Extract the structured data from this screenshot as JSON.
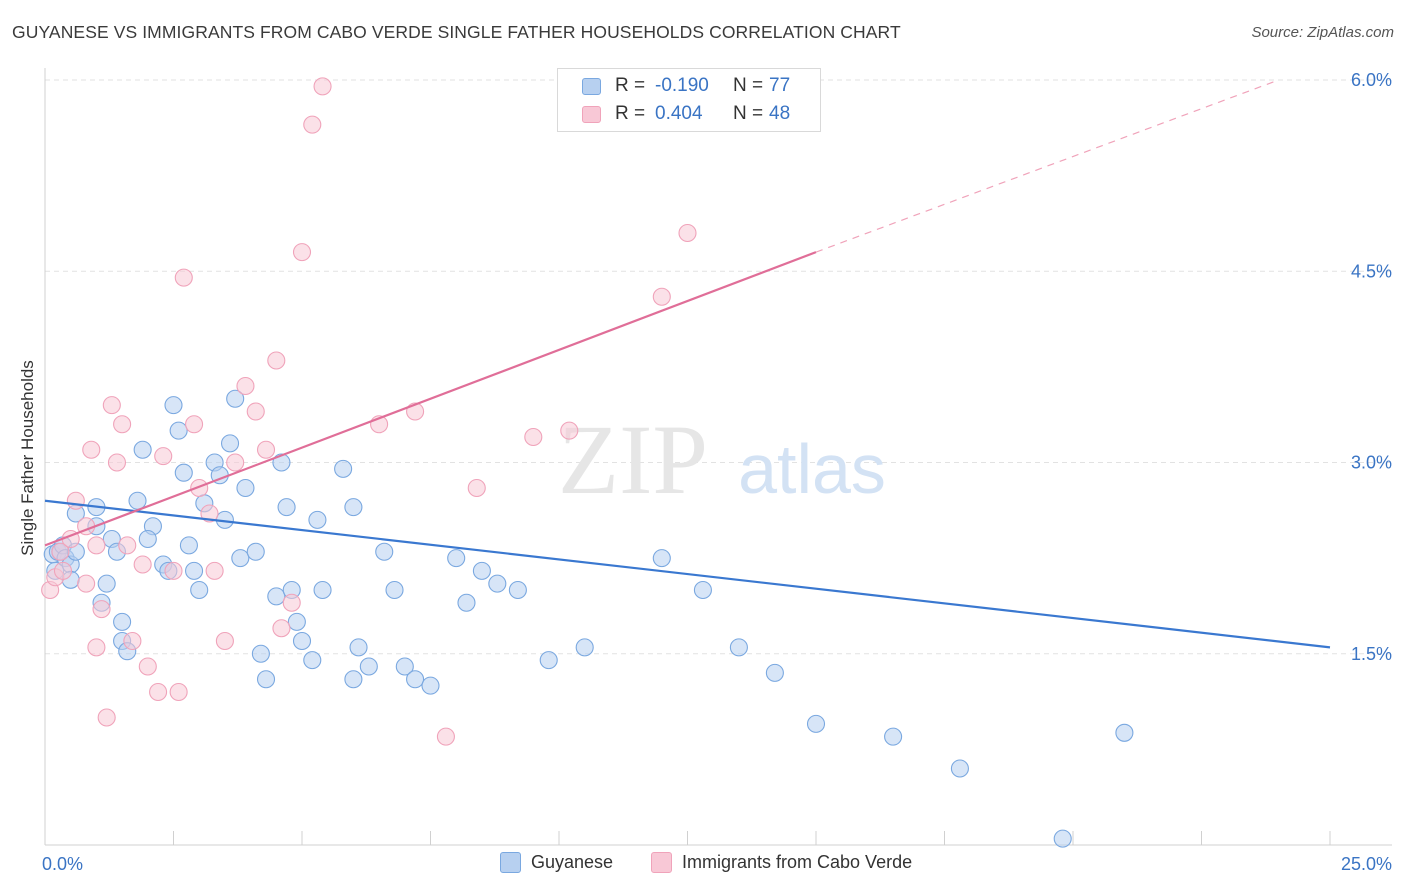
{
  "title": "GUYANESE VS IMMIGRANTS FROM CABO VERDE SINGLE FATHER HOUSEHOLDS CORRELATION CHART",
  "source": "Source: ZipAtlas.com",
  "watermark": {
    "zip": "ZIP",
    "atlas": "atlas"
  },
  "legend": {
    "rows": [
      {
        "r_label": "R =",
        "r_value": "-0.190",
        "n_label": "N =",
        "n_value": "77"
      },
      {
        "r_label": "R =",
        "r_value": "0.404",
        "n_label": "N =",
        "n_value": "48"
      }
    ]
  },
  "bottom_legend": [
    "Guyanese",
    "Immigrants from Cabo Verde"
  ],
  "chart_data": {
    "type": "scatter",
    "title": "GUYANESE VS IMMIGRANTS FROM CABO VERDE SINGLE FATHER HOUSEHOLDS CORRELATION CHART",
    "xlabel": "",
    "ylabel": "Single Father Households",
    "xlim": [
      0,
      25
    ],
    "ylim": [
      0,
      6
    ],
    "x_tick_labels": [
      "0.0%",
      "25.0%"
    ],
    "y_ticks": [
      1.5,
      3.0,
      4.5,
      6.0
    ],
    "y_tick_labels": [
      "1.5%",
      "3.0%",
      "4.5%",
      "6.0%"
    ],
    "grid": true,
    "legend_position": "top-center",
    "series": [
      {
        "name": "Guyanese",
        "color": "#7aa8e0",
        "fill": "#b7d0f0",
        "line_color": "#3a78d0",
        "R": -0.19,
        "N": 77,
        "trend": {
          "x": [
            0,
            25
          ],
          "y": [
            2.7,
            1.55
          ]
        },
        "points": [
          [
            0.15,
            2.28
          ],
          [
            0.2,
            2.15
          ],
          [
            0.25,
            2.3
          ],
          [
            0.3,
            2.3
          ],
          [
            0.35,
            2.35
          ],
          [
            0.4,
            2.25
          ],
          [
            0.5,
            2.2
          ],
          [
            0.6,
            2.3
          ],
          [
            0.5,
            2.08
          ],
          [
            0.6,
            2.6
          ],
          [
            1.0,
            2.65
          ],
          [
            1.0,
            2.5
          ],
          [
            1.3,
            2.4
          ],
          [
            1.4,
            2.3
          ],
          [
            1.2,
            2.05
          ],
          [
            1.1,
            1.9
          ],
          [
            1.5,
            1.75
          ],
          [
            1.5,
            1.6
          ],
          [
            1.6,
            1.52
          ],
          [
            1.8,
            2.7
          ],
          [
            1.9,
            3.1
          ],
          [
            2.1,
            2.5
          ],
          [
            2.0,
            2.4
          ],
          [
            2.3,
            2.2
          ],
          [
            2.4,
            2.15
          ],
          [
            2.5,
            3.45
          ],
          [
            2.6,
            3.25
          ],
          [
            2.7,
            2.92
          ],
          [
            2.8,
            2.35
          ],
          [
            2.9,
            2.15
          ],
          [
            3.0,
            2.0
          ],
          [
            3.1,
            2.68
          ],
          [
            3.3,
            3.0
          ],
          [
            3.4,
            2.9
          ],
          [
            3.5,
            2.55
          ],
          [
            3.6,
            3.15
          ],
          [
            3.7,
            3.5
          ],
          [
            3.8,
            2.25
          ],
          [
            3.9,
            2.8
          ],
          [
            4.1,
            2.3
          ],
          [
            4.2,
            1.5
          ],
          [
            4.5,
            1.95
          ],
          [
            4.3,
            1.3
          ],
          [
            4.6,
            3.0
          ],
          [
            4.7,
            2.65
          ],
          [
            4.8,
            2.0
          ],
          [
            4.9,
            1.75
          ],
          [
            5.0,
            1.6
          ],
          [
            5.3,
            2.55
          ],
          [
            5.4,
            2.0
          ],
          [
            5.2,
            1.45
          ],
          [
            5.8,
            2.95
          ],
          [
            6.0,
            2.65
          ],
          [
            6.1,
            1.55
          ],
          [
            6.3,
            1.4
          ],
          [
            6.0,
            1.3
          ],
          [
            6.6,
            2.3
          ],
          [
            6.8,
            2.0
          ],
          [
            7.0,
            1.4
          ],
          [
            7.2,
            1.3
          ],
          [
            7.5,
            1.25
          ],
          [
            8.0,
            2.25
          ],
          [
            8.2,
            1.9
          ],
          [
            8.5,
            2.15
          ],
          [
            8.8,
            2.05
          ],
          [
            9.2,
            2.0
          ],
          [
            9.8,
            1.45
          ],
          [
            10.5,
            1.55
          ],
          [
            12.0,
            2.25
          ],
          [
            12.8,
            2.0
          ],
          [
            13.5,
            1.55
          ],
          [
            14.2,
            1.35
          ],
          [
            15.0,
            0.95
          ],
          [
            16.5,
            0.85
          ],
          [
            17.8,
            0.6
          ],
          [
            19.8,
            0.05
          ],
          [
            21.0,
            0.88
          ]
        ]
      },
      {
        "name": "Immigrants from Cabo Verde",
        "color": "#f0a3ba",
        "fill": "#f8c8d6",
        "line_color": "#e06e98",
        "R": 0.404,
        "N": 48,
        "trend": {
          "x": [
            0,
            15
          ],
          "y": [
            2.35,
            4.65
          ]
        },
        "trend_dashed": {
          "x": [
            15,
            24
          ],
          "y": [
            4.65,
            6.0
          ]
        },
        "points": [
          [
            0.1,
            2.0
          ],
          [
            0.2,
            2.1
          ],
          [
            0.3,
            2.3
          ],
          [
            0.35,
            2.15
          ],
          [
            0.5,
            2.4
          ],
          [
            0.6,
            2.7
          ],
          [
            0.8,
            2.5
          ],
          [
            0.9,
            3.1
          ],
          [
            1.0,
            2.35
          ],
          [
            0.8,
            2.05
          ],
          [
            1.0,
            1.55
          ],
          [
            1.1,
            1.85
          ],
          [
            1.2,
            1.0
          ],
          [
            1.3,
            3.45
          ],
          [
            1.4,
            3.0
          ],
          [
            1.5,
            3.3
          ],
          [
            1.6,
            2.35
          ],
          [
            1.7,
            1.6
          ],
          [
            1.9,
            2.2
          ],
          [
            2.0,
            1.4
          ],
          [
            2.2,
            1.2
          ],
          [
            2.3,
            3.05
          ],
          [
            2.5,
            2.15
          ],
          [
            2.6,
            1.2
          ],
          [
            2.7,
            4.45
          ],
          [
            2.9,
            3.3
          ],
          [
            3.0,
            2.8
          ],
          [
            3.2,
            2.6
          ],
          [
            3.3,
            2.15
          ],
          [
            3.5,
            1.6
          ],
          [
            3.7,
            3.0
          ],
          [
            3.9,
            3.6
          ],
          [
            4.1,
            3.4
          ],
          [
            4.3,
            3.1
          ],
          [
            4.5,
            3.8
          ],
          [
            4.6,
            1.7
          ],
          [
            4.8,
            1.9
          ],
          [
            5.0,
            4.65
          ],
          [
            5.2,
            5.65
          ],
          [
            5.4,
            5.95
          ],
          [
            6.5,
            3.3
          ],
          [
            7.2,
            3.4
          ],
          [
            7.8,
            0.85
          ],
          [
            8.4,
            2.8
          ],
          [
            9.5,
            3.2
          ],
          [
            10.2,
            3.25
          ],
          [
            12.0,
            4.3
          ],
          [
            12.5,
            4.8
          ]
        ]
      }
    ]
  }
}
